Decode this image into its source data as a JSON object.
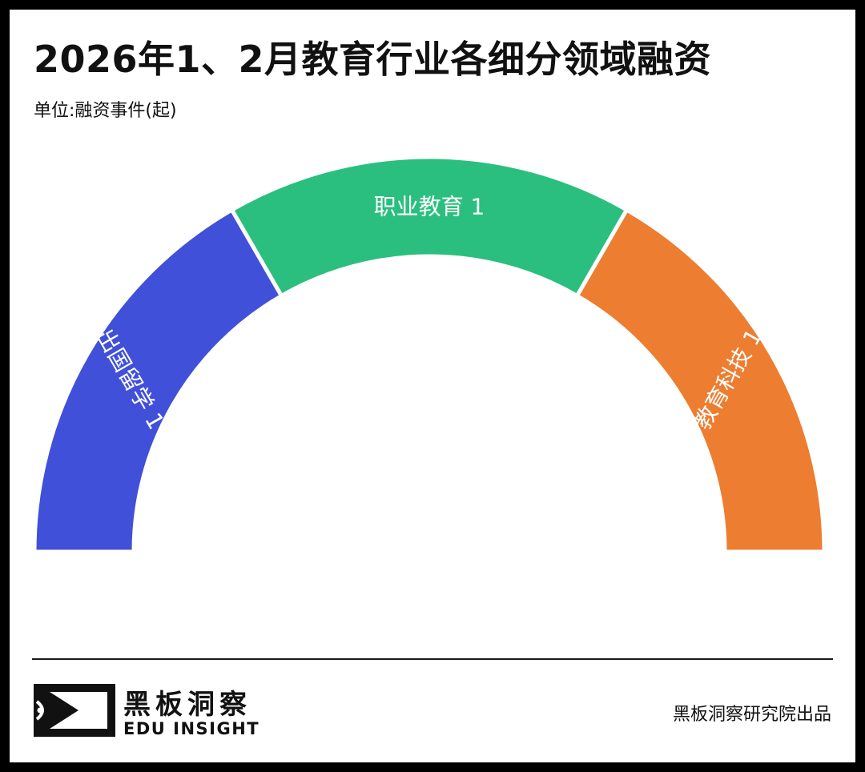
{
  "header": {
    "title": "2026年1、2月教育行业各细分领域融资",
    "unit": "单位:融资事件(起)"
  },
  "chart_data": {
    "type": "pie",
    "variant": "half-donut",
    "title": "2026年1、2月教育行业各细分领域融资",
    "unit": "融资事件(起)",
    "categories": [
      "出国留学",
      "职业教育",
      "教育科技"
    ],
    "values": [
      1,
      1,
      1
    ],
    "colors": [
      "#4150d9",
      "#2bbf7f",
      "#ed7d31"
    ],
    "data_labels": [
      "出国留学 1",
      "职业教育 1",
      "教育科技 1"
    ]
  },
  "footer": {
    "brand_cn": "黑板洞察",
    "brand_en": "EDU INSIGHT",
    "credit": "黑板洞察研究院出品"
  }
}
